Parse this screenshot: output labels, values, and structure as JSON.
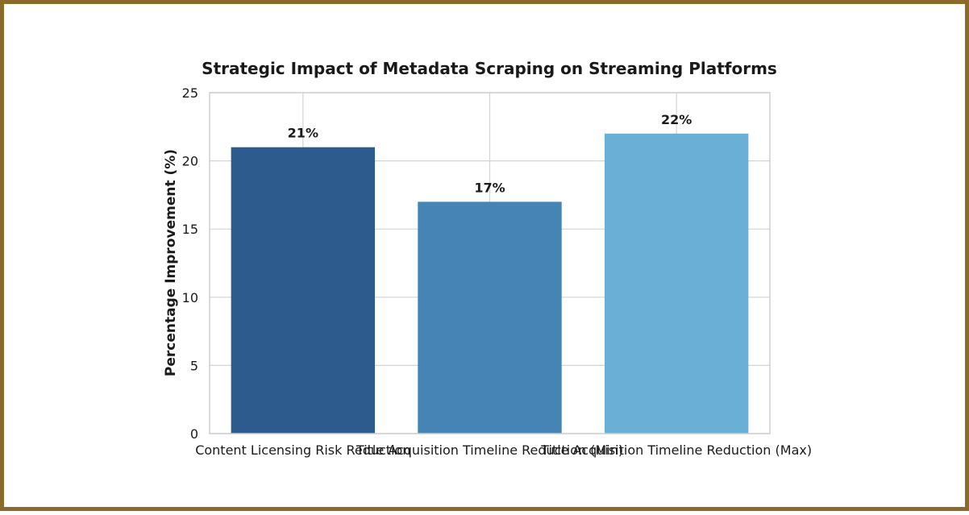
{
  "chart_data": {
    "type": "bar",
    "title": "Strategic Impact of Metadata Scraping on Streaming Platforms",
    "xlabel": "",
    "ylabel": "Percentage Improvement (%)",
    "ylim": [
      0,
      25
    ],
    "yticks": [
      0,
      5,
      10,
      15,
      20,
      25
    ],
    "categories": [
      "Content Licensing Risk Reduction",
      "Title Acquisition Timeline Reduction (Min)",
      "Title Acquisition Timeline Reduction (Max)"
    ],
    "values": [
      21,
      17,
      22
    ],
    "data_labels": [
      "21%",
      "17%",
      "22%"
    ],
    "colors": [
      "#2e5b8d",
      "#4684b6",
      "#6aafd6"
    ],
    "grid": true,
    "legend": "none"
  }
}
